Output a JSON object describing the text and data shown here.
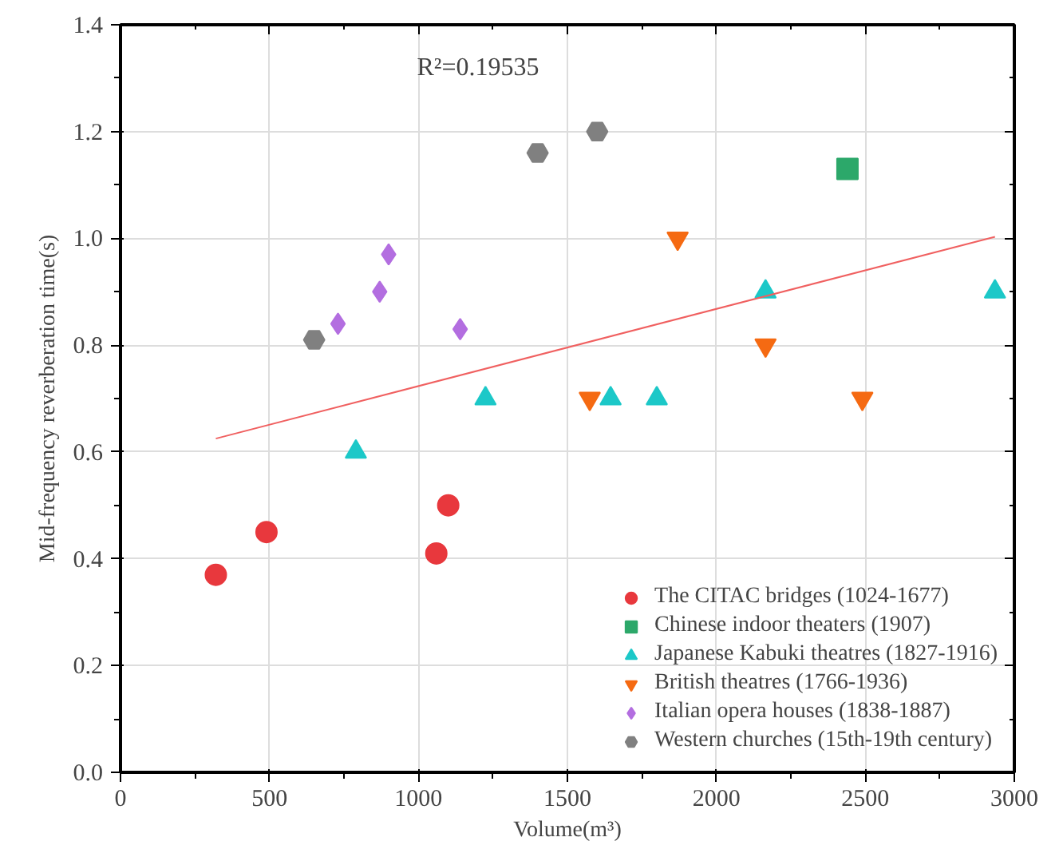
{
  "chart_data": {
    "type": "scatter",
    "xlabel": "Volume(m³)",
    "ylabel": "Mid-frequency reverberation time(s)",
    "xlim": [
      0,
      3000
    ],
    "xticks": [
      0,
      500,
      1000,
      1500,
      2000,
      2500,
      3000
    ],
    "ylim": [
      0,
      1.4
    ],
    "yticks": [
      {
        "value": 0,
        "label": "0.0"
      },
      {
        "value": 0.2,
        "label": "0.2"
      },
      {
        "value": 0.4,
        "label": "0.4"
      },
      {
        "value": 0.6,
        "label": "0.6"
      },
      {
        "value": 0.8,
        "label": "0.8"
      },
      {
        "value": 1.0,
        "label": "1.0"
      },
      {
        "value": 1.2,
        "label": "1.2"
      },
      {
        "value": 1.4,
        "label": "1.4"
      }
    ],
    "grid": true,
    "legend": "bottom right",
    "annotations": [
      "R²=0.19535"
    ],
    "series": [
      {
        "name": "The CITAC bridges (1024-1677)",
        "color": "#e8383d",
        "marker": "circle",
        "x": [
          320,
          490,
          1060,
          1100
        ],
        "values": [
          0.37,
          0.45,
          0.41,
          0.5
        ]
      },
      {
        "name": "Chinese indoor theaters (1907)",
        "color": "#2ca86a",
        "marker": "square",
        "x": [
          2440
        ],
        "values": [
          1.13
        ]
      },
      {
        "name": "Japanese Kabuki theatres (1827-1916)",
        "color": "#1cc8c8",
        "marker": "triangle",
        "x": [
          790,
          1225,
          1645,
          1800,
          2165,
          2935
        ],
        "values": [
          0.6,
          0.7,
          0.7,
          0.7,
          0.9,
          0.9
        ]
      },
      {
        "name": "British theatres (1766-1936)",
        "color": "#f56a12",
        "x": [
          1575,
          1870,
          2165,
          2490
        ],
        "values": [
          0.7,
          1.0,
          0.8,
          0.7
        ]
      },
      {
        "name": "Italian opera houses (1838-1887)",
        "color": "#b36ee0",
        "marker": "diamond",
        "x": [
          730,
          870,
          900,
          1140
        ],
        "values": [
          0.84,
          0.9,
          0.97,
          0.83
        ]
      },
      {
        "name": "Western churches (15th-19th century)",
        "color": "#808080",
        "x": [
          650,
          1400,
          1600
        ],
        "values": [
          0.81,
          1.16,
          1.2
        ]
      },
      {
        "type": "line",
        "color": "#f06060",
        "x": [
          320,
          2935
        ],
        "values": [
          0.625,
          1.003
        ]
      }
    ]
  }
}
